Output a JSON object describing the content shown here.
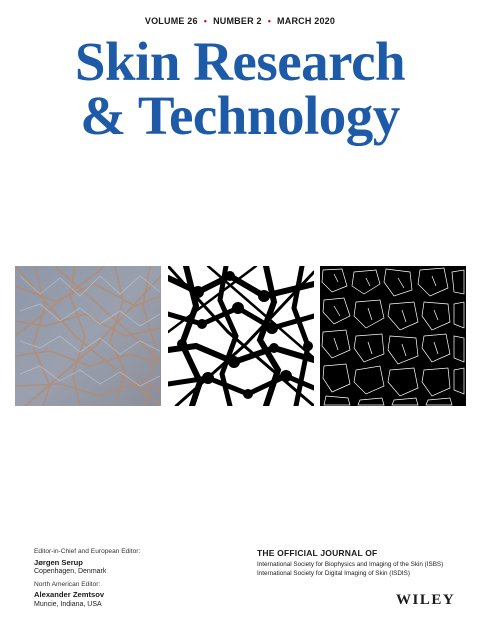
{
  "issue": {
    "volume": "VOLUME 26",
    "number": "NUMBER 2",
    "date": "MARCH 2020",
    "separator": "•",
    "separator_color": "#c8202f"
  },
  "journal": {
    "title_line1": "Skin Research",
    "title_line2": "& Technology",
    "title_color": "#1d5aa8"
  },
  "editors": [
    {
      "role": "Editor-in-Chief and European Editor:",
      "name": "Jørgen Serup",
      "location": "Copenhagen, Denmark"
    },
    {
      "role": "North American Editor:",
      "name": "Alexander Zemtsov",
      "location": "Muncie, Indiana, USA"
    }
  ],
  "official": {
    "heading": "THE OFFICIAL JOURNAL OF",
    "orgs": [
      "International Society for Biophysics and Imaging of the Skin (ISBS)",
      "International Society for Digital Imaging of Skin (ISDIS)"
    ]
  },
  "publisher": {
    "name": "WILEY"
  }
}
